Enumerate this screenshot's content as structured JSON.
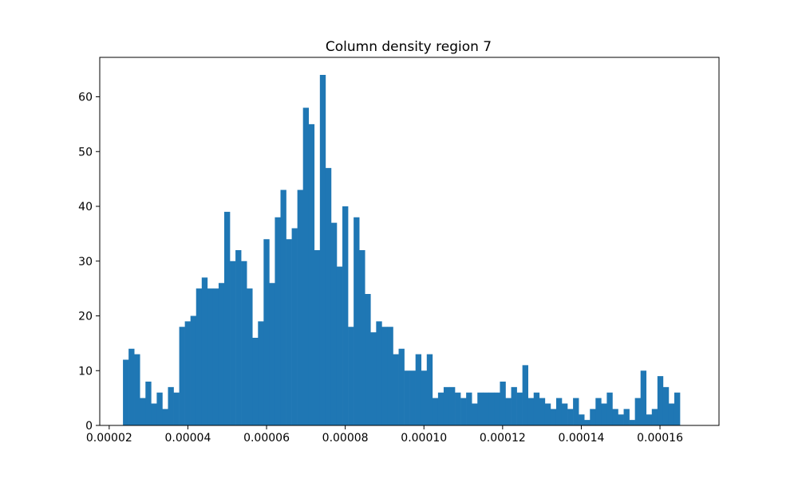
{
  "chart_data": {
    "type": "bar",
    "title": "Column density region 7",
    "xlabel": "",
    "ylabel": "",
    "xlim": [
      1.76e-05,
      0.000175
    ],
    "ylim": [
      0,
      67.2
    ],
    "bin_start": 2.35e-05,
    "bin_width": 1.43e-06,
    "counts": [
      12,
      14,
      13,
      5,
      8,
      4,
      6,
      3,
      7,
      6,
      18,
      19,
      20,
      25,
      27,
      25,
      25,
      26,
      39,
      30,
      32,
      30,
      25,
      16,
      19,
      34,
      26,
      38,
      43,
      34,
      36,
      43,
      58,
      55,
      32,
      64,
      47,
      37,
      29,
      40,
      18,
      38,
      32,
      24,
      17,
      19,
      18,
      18,
      13,
      14,
      10,
      10,
      13,
      10,
      13,
      5,
      6,
      7,
      7,
      6,
      5,
      6,
      4,
      6,
      6,
      6,
      6,
      8,
      5,
      7,
      6,
      11,
      5,
      6,
      5,
      4,
      3,
      5,
      4,
      3,
      5,
      2,
      1,
      3,
      5,
      4,
      6,
      3,
      2,
      3,
      1,
      5,
      10,
      2,
      3,
      9,
      7,
      4,
      6
    ],
    "x_ticks": [
      "0.00002",
      "0.00004",
      "0.00006",
      "0.00008",
      "0.00010",
      "0.00012",
      "0.00014",
      "0.00016"
    ],
    "x_tick_values": [
      2e-05,
      4e-05,
      6e-05,
      8e-05,
      0.0001,
      0.00012,
      0.00014,
      0.00016
    ],
    "y_ticks": [
      "0",
      "10",
      "20",
      "30",
      "40",
      "50",
      "60"
    ],
    "y_tick_values": [
      0,
      10,
      20,
      30,
      40,
      50,
      60
    ],
    "bar_color": "#1f77b4",
    "grid": false,
    "legend": "none"
  }
}
